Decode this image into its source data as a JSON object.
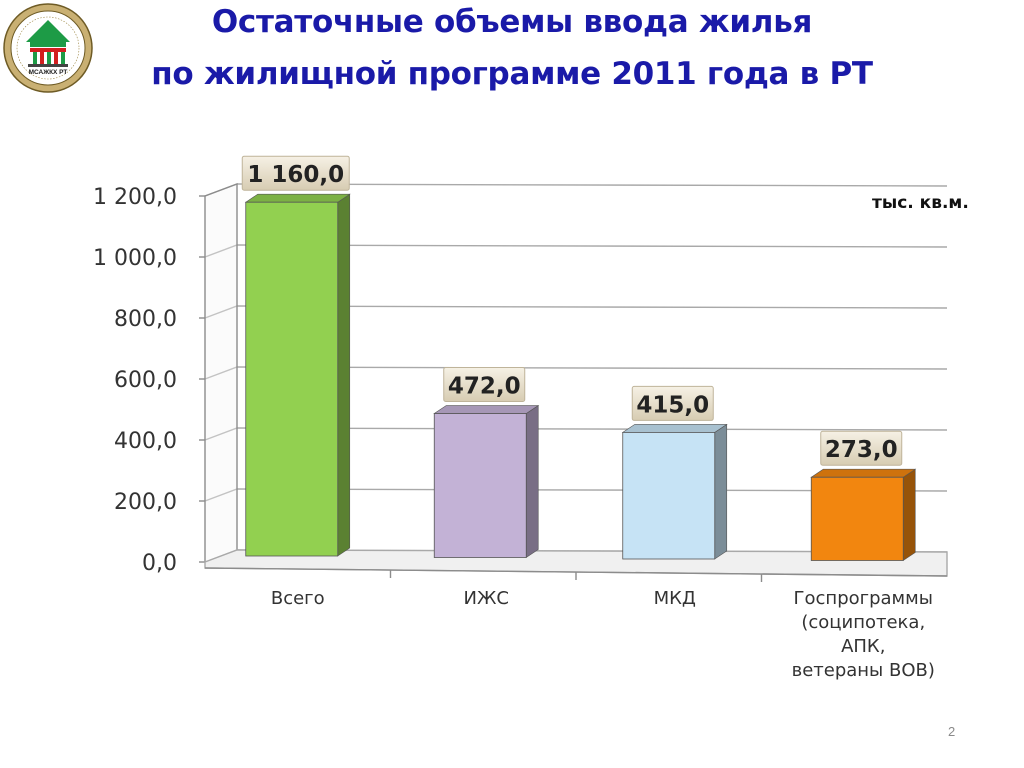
{
  "slide": {
    "title_line1": "Остаточные объемы ввода жилья",
    "title_line2": "по жилищной программе 2011 года в РТ",
    "unit": "тыс. кв.м.",
    "page_number": "2",
    "logo_text": "МСАЖКХ РТ"
  },
  "colors": {
    "title": "#1a1aa8",
    "bars": [
      "#92d050",
      "#c3b2d6",
      "#c6e3f5",
      "#f2860f"
    ],
    "label_box": "#ece4d2"
  },
  "chart_data": {
    "type": "bar",
    "categories": [
      [
        "Всего"
      ],
      [
        "ИЖС"
      ],
      [
        "МКД"
      ],
      [
        "Госпрограммы",
        "(соципотека,",
        "АПК,",
        "ветераны ВОВ)"
      ]
    ],
    "values": [
      1160.0,
      472.0,
      415.0,
      273.0
    ],
    "data_labels": [
      "1 160,0",
      "472,0",
      "415,0",
      "273,0"
    ],
    "yticks": [
      "0,0",
      "200,0",
      "400,0",
      "600,0",
      "800,0",
      "1 000,0",
      "1 200,0"
    ],
    "ylim": [
      0,
      1200
    ],
    "grid": true,
    "title": "",
    "xlabel": "",
    "ylabel": ""
  }
}
